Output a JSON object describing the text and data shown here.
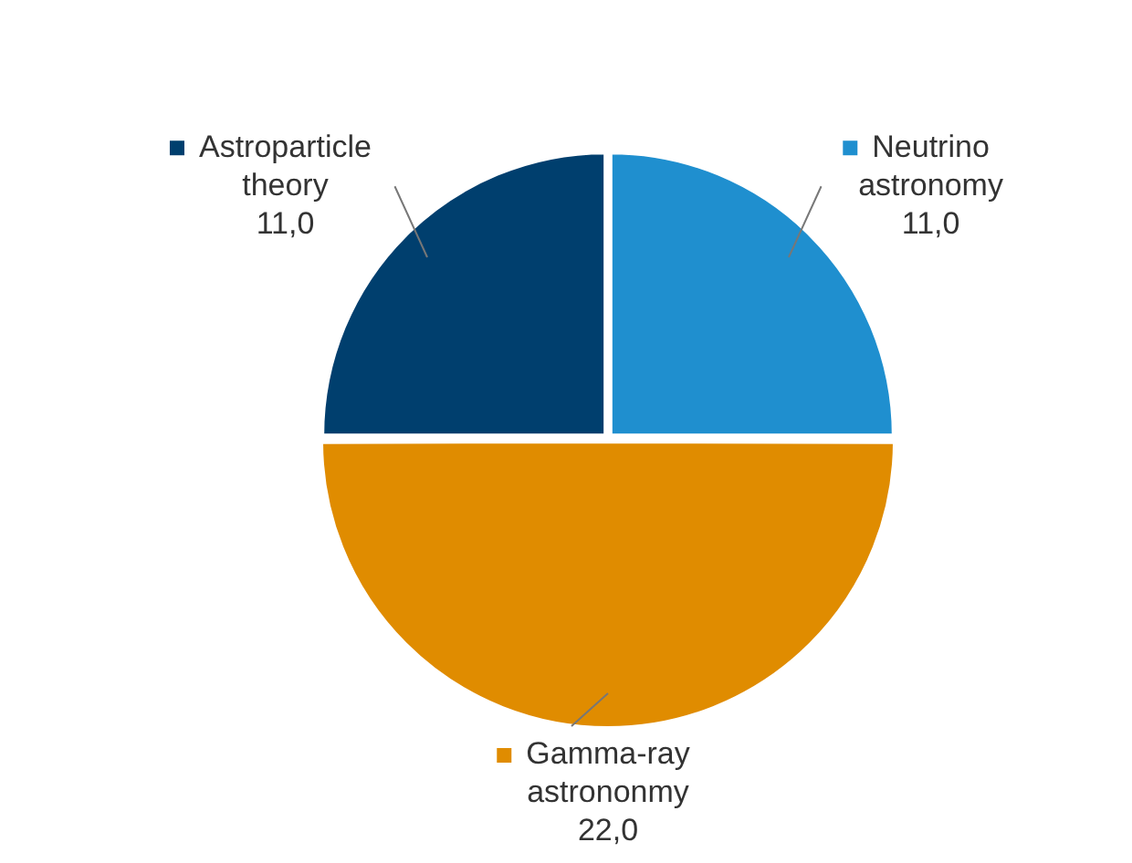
{
  "chart_data": {
    "type": "pie",
    "categories": [
      "Neutrino astronomy",
      "Gamma-ray astrononmy",
      "Astroparticle theory"
    ],
    "values": [
      11.0,
      22.0,
      11.0
    ],
    "colors": [
      "#1f8fcf",
      "#e08c00",
      "#003f6e"
    ],
    "value_labels": [
      "11,0",
      "22,0",
      "11,0"
    ],
    "legend": "bottom left"
  }
}
